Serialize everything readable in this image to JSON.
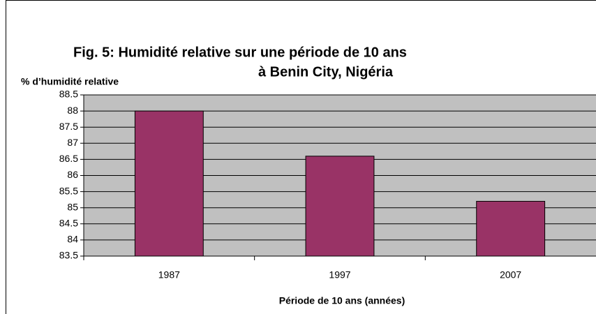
{
  "chart_data": {
    "type": "bar",
    "title": "Fig. 5: Humidité relative sur une période de 10 ans",
    "subtitle": "à Benin City, Nigéria",
    "y_label": "% d’humidité relative",
    "x_label": "Période de 10 ans (années)",
    "categories": [
      "1987",
      "1997",
      "2007"
    ],
    "values": [
      88,
      86.6,
      85.2
    ],
    "color": "#993366",
    "ylim": [
      83.5,
      88.5
    ],
    "yticks": [
      83.5,
      84,
      84.5,
      85,
      85.5,
      86,
      86.5,
      87,
      87.5,
      88,
      88.5
    ],
    "grid": true
  }
}
